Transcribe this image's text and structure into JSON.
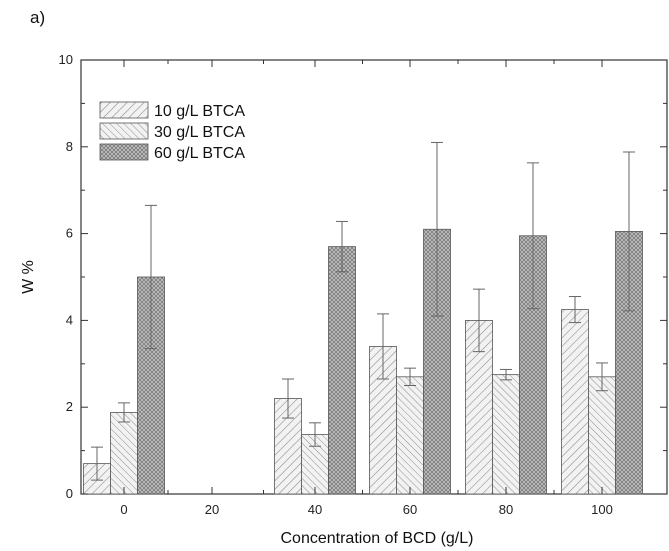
{
  "figure": {
    "panel_label": "a)"
  },
  "chart_data": {
    "type": "bar",
    "title": "",
    "xlabel": "Concentration of BCD (g/L)",
    "ylabel": "W %",
    "categories": [
      "0",
      "20",
      "40",
      "60",
      "80",
      "100"
    ],
    "ylim": [
      0,
      10
    ],
    "yticks": [
      "0",
      "2",
      "4",
      "6",
      "8",
      "10"
    ],
    "legend_position": "top-left",
    "error_bars": true,
    "series": [
      {
        "name": "10 g/L BTCA",
        "values": [
          0.7,
          null,
          2.2,
          3.4,
          4.0,
          4.25
        ],
        "errors": [
          0.38,
          null,
          0.45,
          0.75,
          0.72,
          0.3
        ]
      },
      {
        "name": "30 g/L BTCA",
        "values": [
          1.88,
          null,
          1.37,
          2.7,
          2.75,
          2.7
        ],
        "errors": [
          0.22,
          null,
          0.27,
          0.2,
          0.12,
          0.32
        ]
      },
      {
        "name": "60 g/L BTCA",
        "values": [
          5.0,
          null,
          5.7,
          6.1,
          5.95,
          6.05
        ],
        "errors": [
          1.65,
          null,
          0.58,
          2.0,
          1.68,
          1.83
        ]
      }
    ]
  }
}
